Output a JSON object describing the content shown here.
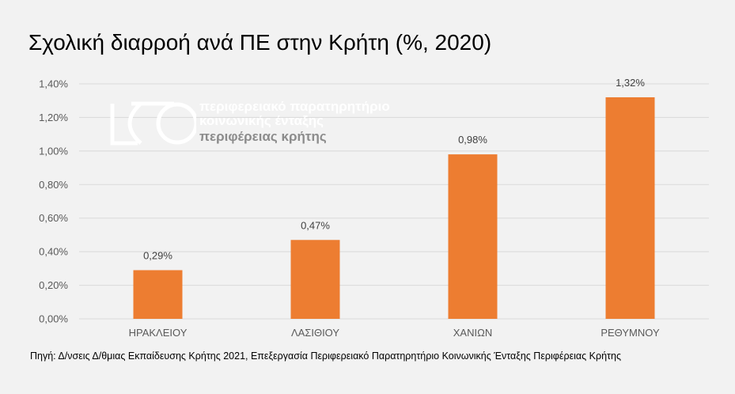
{
  "chart_data": {
    "type": "bar",
    "title": "Σχολική διαρροή ανά ΠΕ στην Κρήτη (%, 2020)",
    "categories": [
      "ΗΡΑΚΛΕΙΟΥ",
      "ΛΑΣΙΘΙΟΥ",
      "ΧΑΝΙΩΝ",
      "ΡΕΘΥΜΝΟΥ"
    ],
    "values": [
      0.29,
      0.47,
      0.98,
      1.32
    ],
    "data_labels": [
      "0,29%",
      "0,47%",
      "0,98%",
      "1,32%"
    ],
    "unit": "%",
    "ylim": [
      0,
      1.4
    ],
    "yticks": [
      0,
      0.2,
      0.4,
      0.6,
      0.8,
      1.0,
      1.2,
      1.4
    ],
    "ytick_labels": [
      "0,00%",
      "0,20%",
      "0,40%",
      "0,60%",
      "0,80%",
      "1,00%",
      "1,20%",
      "1,40%"
    ],
    "xlabel": "",
    "ylabel": "",
    "grid": true,
    "legend": "none",
    "bar_color": "#ed7d31",
    "grid_color": "#d9d9d9",
    "background_color": "#f2f2f2"
  },
  "watermark": {
    "line1": "περιφερειακό παρατηρητήριο",
    "line2": "κοινωνικής ένταξης",
    "line3": "περιφέρειας κρήτης"
  },
  "source": "Πηγή: Δ/νσεις Δ/θμιας Εκπαίδευσης Κρήτης 2021, Επεξεργασία Περιφερειακό Παρατηρητήριο Κοινωνικής Ένταξης Περιφέρειας Κρήτης"
}
